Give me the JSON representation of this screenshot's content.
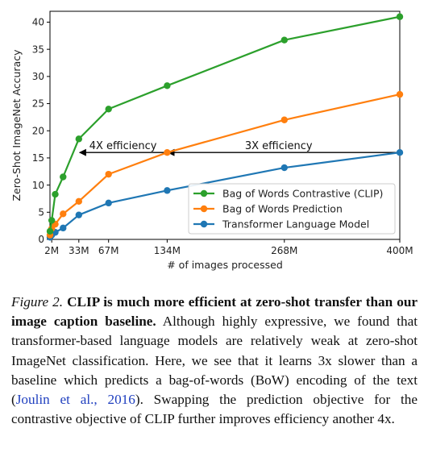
{
  "chart_data": {
    "type": "line",
    "title": "",
    "xlabel": "# of images processed",
    "ylabel": "Zero-Shot ImageNet Accuracy",
    "xlim": [
      0,
      400
    ],
    "ylim": [
      0,
      42
    ],
    "grid": false,
    "legend_placement": "center-right",
    "x_ticks": [
      {
        "value": 2,
        "label": "2M"
      },
      {
        "value": 33,
        "label": "33M"
      },
      {
        "value": 67,
        "label": "67M"
      },
      {
        "value": 134,
        "label": "134M"
      },
      {
        "value": 268,
        "label": "268M"
      },
      {
        "value": 400,
        "label": "400M"
      }
    ],
    "y_ticks": [
      0,
      5,
      10,
      15,
      20,
      25,
      30,
      35,
      40
    ],
    "series": [
      {
        "name": "Bag of Words Contrastive (CLIP)",
        "color": "#2ca02c",
        "x": [
          0,
          2,
          6,
          15,
          33,
          67,
          134,
          268,
          400
        ],
        "y": [
          1.5,
          3.5,
          8.3,
          11.5,
          18.5,
          24,
          28.3,
          36.7,
          41
        ]
      },
      {
        "name": "Bag of Words Prediction",
        "color": "#ff7f0e",
        "x": [
          0,
          2,
          6,
          15,
          33,
          67,
          134,
          268,
          400
        ],
        "y": [
          0.8,
          2,
          2.8,
          4.7,
          7,
          12,
          16,
          22,
          26.7
        ]
      },
      {
        "name": "Transformer Language Model",
        "color": "#1f77b4",
        "x": [
          0,
          2,
          6,
          15,
          33,
          67,
          134,
          268,
          400
        ],
        "y": [
          0.4,
          0.8,
          1.3,
          2.1,
          4.5,
          6.7,
          9,
          13.2,
          16
        ]
      }
    ],
    "annotations": [
      {
        "text": "4X efficiency",
        "from_x": 134,
        "to_x": 33,
        "y": 16
      },
      {
        "text": "3X efficiency",
        "from_x": 400,
        "to_x": 134,
        "y": 16
      }
    ]
  },
  "caption": {
    "figure_label": "Figure 2.",
    "bold_text": "CLIP is much more efficient at zero-shot transfer than our image caption baseline.",
    "text_before_citation": "Although highly expressive, we found that transformer-based language models are relatively weak at zero-shot ImageNet classification. Here, we see that it learns 3x slower than a baseline which predicts a bag-of-words (BoW) encoding of the text (",
    "citation": "Joulin et al., 2016",
    "text_after_citation": "). Swapping the prediction objective for the contrastive objective of CLIP further improves efficiency another 4x."
  }
}
